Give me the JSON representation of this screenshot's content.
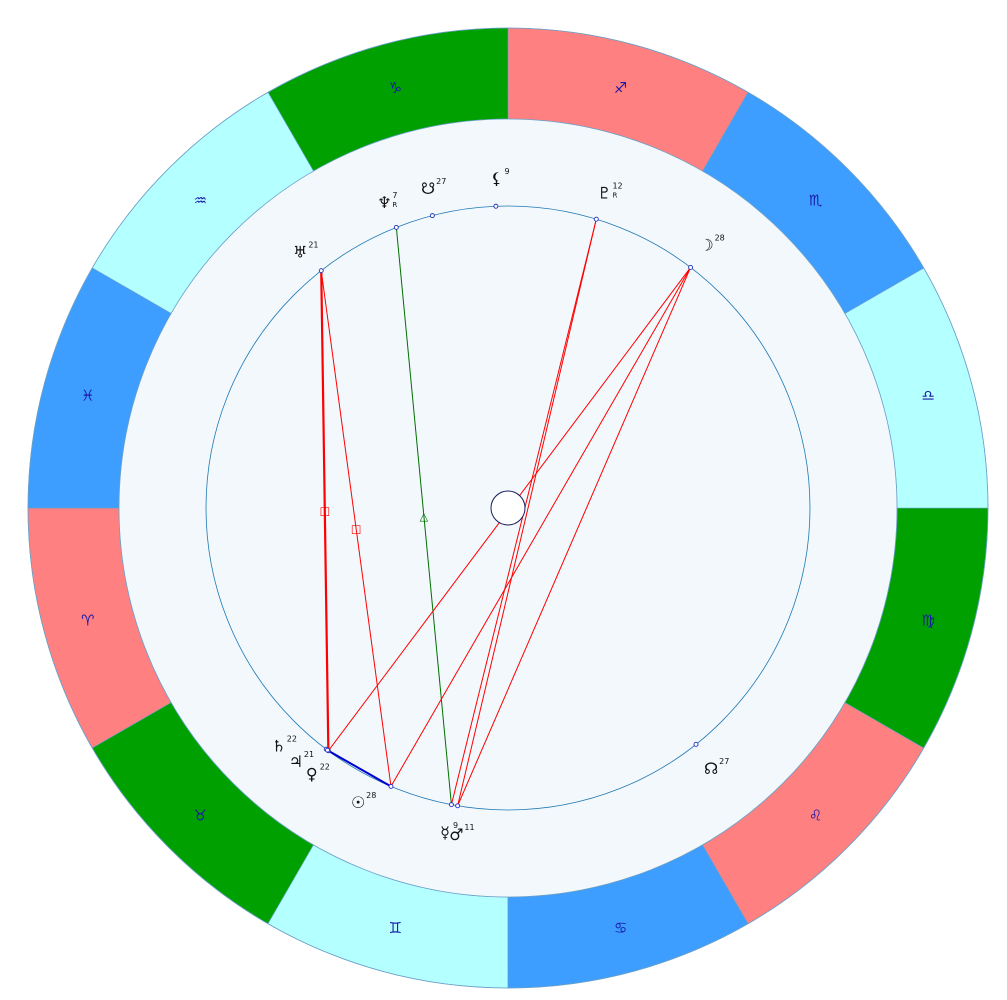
{
  "colors": {
    "fire": "#ff8080",
    "earth": "#00a000",
    "air": "#b4ffff",
    "water": "#3d9eff",
    "inner_band": "#f2f8fc",
    "circle_line": "#1e78b4",
    "marker_fill": "#ffffff",
    "marker_stroke": "#2030c0",
    "conjunction": "#0000d0",
    "square": "#ff0000",
    "opposition": "#ff0000",
    "trine": "#007000",
    "sign_glyph": "#1a1aaa"
  },
  "signs": [
    {
      "name": "aries",
      "glyph": "♈",
      "element": "fire",
      "center_angle": 165
    },
    {
      "name": "taurus",
      "glyph": "♉",
      "element": "earth",
      "center_angle": 135
    },
    {
      "name": "gemini",
      "glyph": "♊",
      "element": "air",
      "center_angle": 105
    },
    {
      "name": "cancer",
      "glyph": "♋",
      "element": "water",
      "center_angle": 75
    },
    {
      "name": "leo",
      "glyph": "♌",
      "element": "fire",
      "center_angle": 45
    },
    {
      "name": "virgo",
      "glyph": "♍",
      "element": "earth",
      "center_angle": 15
    },
    {
      "name": "libra",
      "glyph": "♎",
      "element": "air",
      "center_angle": -15
    },
    {
      "name": "scorpio",
      "glyph": "♏",
      "element": "water",
      "center_angle": -45
    },
    {
      "name": "sagittarius",
      "glyph": "♐",
      "element": "fire",
      "center_angle": -75
    },
    {
      "name": "capricorn",
      "glyph": "♑",
      "element": "earth",
      "center_angle": -105
    },
    {
      "name": "aquarius",
      "glyph": "♒",
      "element": "air",
      "center_angle": -135
    },
    {
      "name": "pisces",
      "glyph": "♓",
      "element": "water",
      "center_angle": -165
    }
  ],
  "planets": [
    {
      "name": "sun",
      "glyph": "☉",
      "degree": "28",
      "retro": "",
      "point_angle": 112.8,
      "label_angle": 117
    },
    {
      "name": "moon",
      "glyph": "☽",
      "degree": "28",
      "retro": "",
      "point_angle": -52.8,
      "label_angle": -53
    },
    {
      "name": "mercury",
      "glyph": "☿",
      "degree": "9",
      "retro": "",
      "point_angle": 100.8,
      "label_angle": 101
    },
    {
      "name": "venus",
      "glyph": "♀",
      "degree": "22",
      "retro": "",
      "point_angle": 126.5,
      "label_angle": 126.5
    },
    {
      "name": "mars",
      "glyph": "♂",
      "degree": "11",
      "retro": "",
      "point_angle": 99.6,
      "label_angle": 99
    },
    {
      "name": "jupiter",
      "glyph": "♃",
      "degree": "21",
      "retro": "",
      "point_angle": 127,
      "label_angle": 130
    },
    {
      "name": "saturn",
      "glyph": "♄",
      "degree": "22",
      "retro": "",
      "point_angle": 126.7,
      "label_angle": 134
    },
    {
      "name": "uranus",
      "glyph": "♅",
      "degree": "21",
      "retro": "",
      "point_angle": -128.2,
      "label_angle": -129
    },
    {
      "name": "neptune",
      "glyph": "♆",
      "degree": "7",
      "retro": "R",
      "point_angle": -111.7,
      "label_angle": -112
    },
    {
      "name": "pluto",
      "glyph": "♇",
      "degree": "12",
      "retro": "R",
      "point_angle": -73,
      "label_angle": -73
    },
    {
      "name": "north-node",
      "glyph": "☊",
      "degree": "27",
      "retro": "",
      "point_angle": 51.5,
      "label_angle": 52
    },
    {
      "name": "south-node",
      "glyph": "☋",
      "degree": "27",
      "retro": "",
      "point_angle": -104.5,
      "label_angle": -104
    },
    {
      "name": "lilith",
      "glyph": "⚸",
      "degree": "9",
      "retro": "",
      "point_angle": -92.3,
      "label_angle": -92
    }
  ],
  "aspects": [
    {
      "type": "conjunction",
      "a": "venus",
      "b": "sun",
      "glyph": ""
    },
    {
      "type": "square",
      "a": "uranus",
      "b": "venus",
      "glyph": "□"
    },
    {
      "type": "square",
      "a": "uranus",
      "b": "sun",
      "glyph": "□"
    },
    {
      "type": "trine",
      "a": "neptune",
      "b": "mercury",
      "glyph": "△"
    },
    {
      "type": "opposition",
      "a": "moon",
      "b": "venus",
      "glyph": ""
    },
    {
      "type": "opposition",
      "a": "moon",
      "b": "sun",
      "glyph": ""
    },
    {
      "type": "opposition",
      "a": "moon",
      "b": "mars",
      "glyph": ""
    },
    {
      "type": "opposition",
      "a": "pluto",
      "b": "mercury",
      "glyph": ""
    },
    {
      "type": "opposition",
      "a": "pluto",
      "b": "mars",
      "glyph": ""
    }
  ]
}
